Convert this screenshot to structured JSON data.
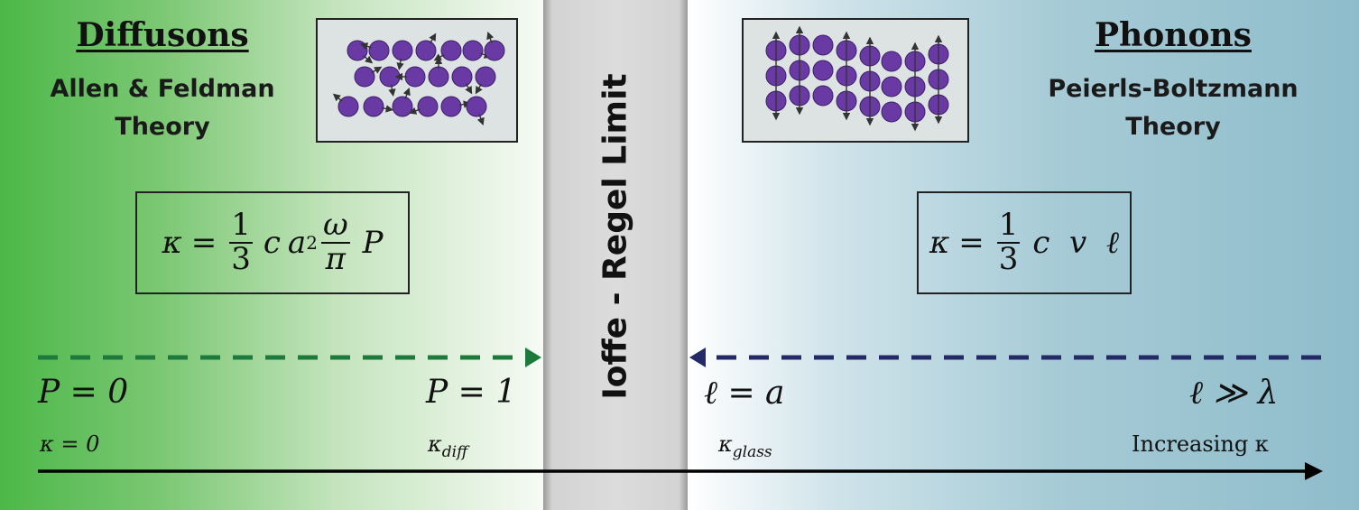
{
  "left": {
    "title": "Diffusons",
    "subtitle": "Allen & Feldman\nTheory",
    "formula": {
      "lhs": "κ",
      "eq": "=",
      "frac1_num": "1",
      "frac1_den": "3",
      "c": "c",
      "a": "a",
      "exp": "2",
      "frac2_num": "ω",
      "frac2_den": "π",
      "p": "P"
    },
    "start_label": "P = 0",
    "end_label": "P = 1",
    "kappa_zero": "κ = 0",
    "kappa_diff": {
      "base": "κ",
      "sub": "diff"
    }
  },
  "center": {
    "label": "Ioffe - Regel  Limit"
  },
  "right": {
    "title": "Phonons",
    "subtitle": "Peierls-Boltzmann\nTheory",
    "formula": {
      "lhs": "κ",
      "eq": "=",
      "frac_num": "1",
      "frac_den": "3",
      "rest": "c  v  ℓ"
    },
    "start_label": "ℓ = a",
    "end_label": "ℓ ≫ λ",
    "kappa_glass": {
      "base": "κ",
      "sub": "glass"
    },
    "increasing_label": "Increasing κ"
  },
  "colors": {
    "left_arrow": "#1e7a3c",
    "right_arrow": "#232a66",
    "particle": "#6a3aa4",
    "axis": "#000000"
  }
}
